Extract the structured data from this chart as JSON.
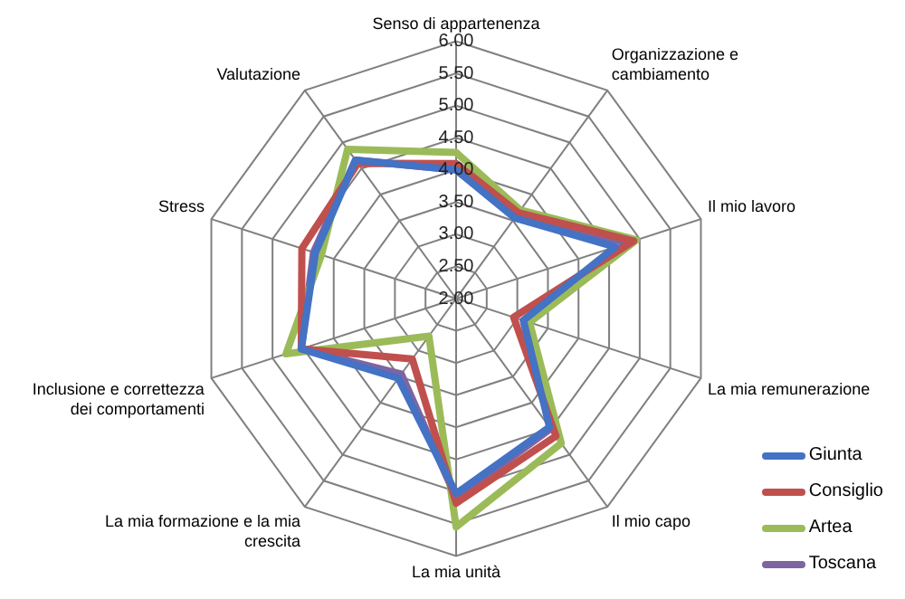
{
  "chart_data": {
    "type": "radar",
    "categories": [
      "Senso di appartenenza",
      "Organizzazione e cambiamento",
      "Il mio lavoro",
      "La mia remunerazione",
      "Il mio capo",
      "La mia unità",
      "La mia formazione e la mia crescita",
      "Inclusione e correttezza dei comportamenti",
      "Stress",
      "Valutazione"
    ],
    "series": [
      {
        "name": "Giunta",
        "color": "#4472c4",
        "values": [
          4.0,
          3.55,
          4.6,
          3.1,
          4.47,
          5.03,
          3.53,
          4.53,
          4.3,
          4.66
        ]
      },
      {
        "name": "Consiglio",
        "color": "#c0504d",
        "values": [
          4.1,
          3.65,
          4.9,
          2.94,
          4.64,
          5.18,
          3.16,
          4.53,
          4.52,
          4.6
        ]
      },
      {
        "name": "Artea",
        "color": "#9bbb59",
        "values": [
          4.27,
          3.7,
          4.95,
          3.2,
          4.78,
          5.55,
          2.72,
          4.78,
          4.2,
          4.87
        ]
      },
      {
        "name": "Toscana",
        "color": "#8064a2",
        "values": [
          4.0,
          3.6,
          4.8,
          3.1,
          4.5,
          5.1,
          3.45,
          4.53,
          4.33,
          4.66
        ]
      }
    ],
    "ylim": [
      2,
      6
    ],
    "yticks": [
      {
        "value": 2,
        "label": "2.00"
      },
      {
        "value": 2.5,
        "label": "2.50"
      },
      {
        "value": 3,
        "label": "3.00"
      },
      {
        "value": 3.5,
        "label": "3.50"
      },
      {
        "value": 4,
        "label": "4.00"
      },
      {
        "value": 4.5,
        "label": "4.50"
      },
      {
        "value": 5,
        "label": "5.00"
      },
      {
        "value": 5.5,
        "label": "5.50"
      },
      {
        "value": 6,
        "label": "6.00"
      }
    ],
    "grid": true,
    "legend": "bottom right"
  }
}
